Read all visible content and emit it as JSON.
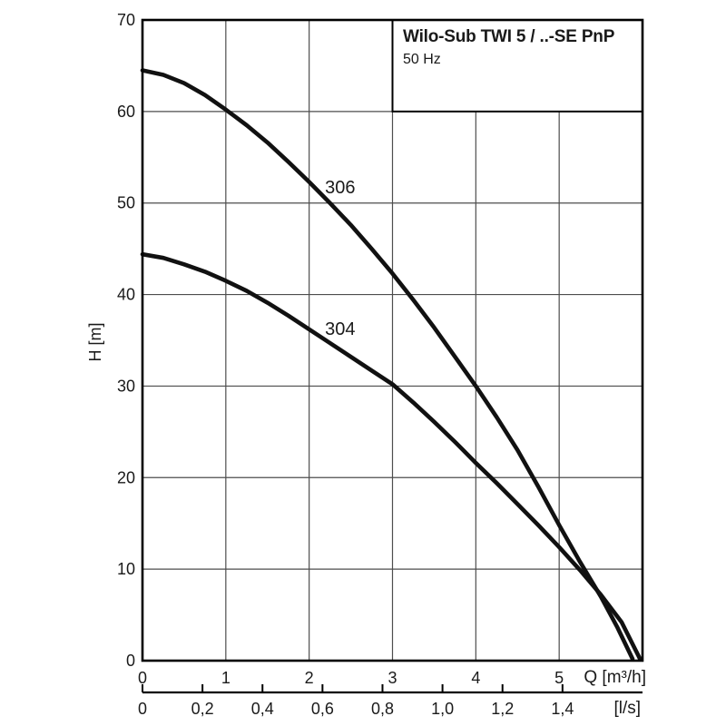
{
  "title_box": {
    "title": "Wilo-Sub TWI 5 / ..-SE PnP",
    "subtitle": "50 Hz"
  },
  "chart_data": {
    "type": "line",
    "title": "Wilo-Sub TWI 5 / ..-SE PnP",
    "subtitle": "50 Hz",
    "xlabel": "Q [m³/h]",
    "x2label": "[l/s]",
    "ylabel": "H [m]",
    "xlim": [
      0,
      6
    ],
    "ylim": [
      0,
      70
    ],
    "grid": true,
    "legend_position": "labels-on-curves",
    "y_ticks": {
      "values": [
        0,
        10,
        20,
        30,
        40,
        50,
        60,
        70
      ],
      "labels": [
        "0",
        "10",
        "20",
        "30",
        "40",
        "50",
        "60",
        "70"
      ]
    },
    "x_ticks": {
      "values": [
        0,
        1,
        2,
        3,
        4,
        5
      ],
      "labels": [
        "0",
        "1",
        "2",
        "3",
        "4",
        "5"
      ]
    },
    "x2_axis": {
      "unit": "l/s",
      "x_per_unit": 3.6,
      "values": [
        0,
        0.2,
        0.4,
        0.6,
        0.8,
        1.0,
        1.2,
        1.4
      ],
      "labels": [
        "0",
        "0,2",
        "0,4",
        "0,6",
        "0,8",
        "1,0",
        "1,2",
        "1,4"
      ]
    },
    "series": [
      {
        "name": "306",
        "annotation": {
          "text": "306",
          "q": 2.19,
          "h": 51.2
        },
        "points": [
          [
            0,
            64.5
          ],
          [
            0.25,
            64.0
          ],
          [
            0.5,
            63.1
          ],
          [
            0.75,
            61.8
          ],
          [
            1,
            60.2
          ],
          [
            1.25,
            58.5
          ],
          [
            1.5,
            56.6
          ],
          [
            1.75,
            54.5
          ],
          [
            2,
            52.3
          ],
          [
            2.25,
            50.0
          ],
          [
            2.5,
            47.6
          ],
          [
            2.75,
            45.0
          ],
          [
            3,
            42.3
          ],
          [
            3.25,
            39.4
          ],
          [
            3.5,
            36.4
          ],
          [
            3.75,
            33.2
          ],
          [
            4,
            30.0
          ],
          [
            4.25,
            26.6
          ],
          [
            4.5,
            23.0
          ],
          [
            4.75,
            19.0
          ],
          [
            5,
            14.8
          ],
          [
            5.25,
            10.8
          ],
          [
            5.5,
            7.0
          ],
          [
            5.7,
            3.6
          ],
          [
            5.88,
            0.2
          ]
        ]
      },
      {
        "name": "304",
        "annotation": {
          "text": "304",
          "q": 2.19,
          "h": 35.7
        },
        "points": [
          [
            0,
            44.4
          ],
          [
            0.25,
            44.0
          ],
          [
            0.5,
            43.3
          ],
          [
            0.75,
            42.5
          ],
          [
            1,
            41.5
          ],
          [
            1.25,
            40.4
          ],
          [
            1.5,
            39.1
          ],
          [
            1.75,
            37.7
          ],
          [
            2,
            36.2
          ],
          [
            2.25,
            34.7
          ],
          [
            2.5,
            33.2
          ],
          [
            2.75,
            31.7
          ],
          [
            3,
            30.2
          ],
          [
            3.25,
            28.2
          ],
          [
            3.5,
            26.1
          ],
          [
            3.75,
            23.9
          ],
          [
            4,
            21.6
          ],
          [
            4.25,
            19.4
          ],
          [
            4.5,
            17.1
          ],
          [
            4.75,
            14.8
          ],
          [
            5,
            12.4
          ],
          [
            5.25,
            9.9
          ],
          [
            5.5,
            7.2
          ],
          [
            5.75,
            4.2
          ],
          [
            5.97,
            0.2
          ]
        ]
      }
    ],
    "colors": {
      "curve": "#111111",
      "grid": "#4d4d4d",
      "border": "#000000",
      "text": "#1a1a1a",
      "background": "#ffffff"
    }
  }
}
